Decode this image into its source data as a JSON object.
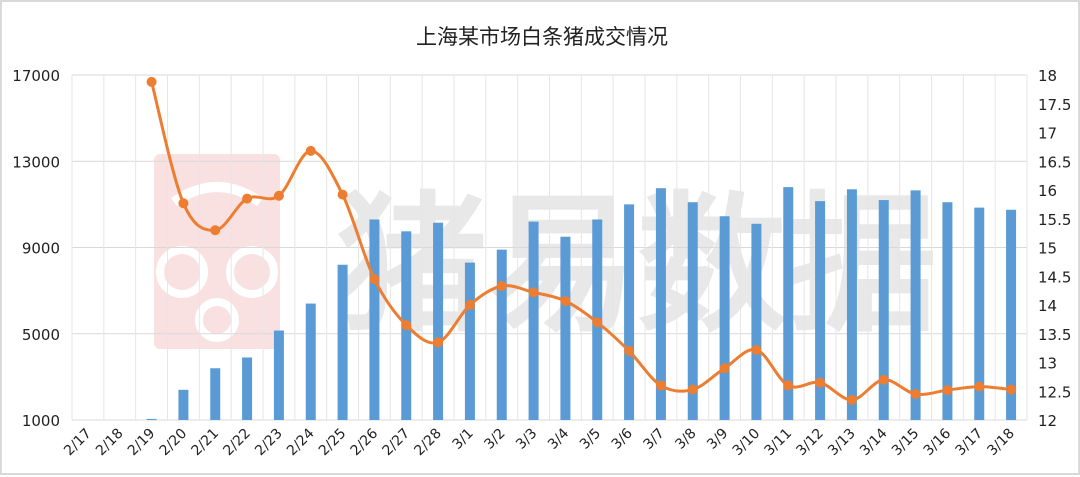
{
  "chart_data": {
    "type": "bar+line",
    "title": "上海某市场白条猪成交情况",
    "watermark": "猪易数据",
    "categories": [
      "2/17",
      "2/18",
      "2/19",
      "2/20",
      "2/21",
      "2/22",
      "2/23",
      "2/24",
      "2/25",
      "2/26",
      "2/27",
      "2/28",
      "3/1",
      "3/2",
      "3/3",
      "3/4",
      "3/5",
      "3/6",
      "3/7",
      "3/8",
      "3/9",
      "3/10",
      "3/11",
      "3/12",
      "3/13",
      "3/14",
      "3/15",
      "3/16",
      "3/17",
      "3/18"
    ],
    "left_axis": {
      "ylim": [
        1000,
        17000
      ],
      "ticks": [
        "1000",
        "5000",
        "9000",
        "13000",
        "17000"
      ]
    },
    "right_axis": {
      "ylim": [
        12,
        18
      ],
      "ticks": [
        "12",
        "12.5",
        "13",
        "13.5",
        "14",
        "14.5",
        "15",
        "15.5",
        "16",
        "16.5",
        "17",
        "17.5",
        "18"
      ]
    },
    "series": [
      {
        "type": "bar",
        "axis": "left",
        "color": "#5b9bd5",
        "values": [
          null,
          null,
          1050,
          2400,
          3400,
          3900,
          5150,
          6400,
          8200,
          10300,
          9750,
          10150,
          8300,
          8900,
          10200,
          9500,
          10300,
          11000,
          11750,
          11100,
          10450,
          10100,
          11800,
          11150,
          11700,
          11200,
          11650,
          11100,
          10850,
          10750
        ]
      },
      {
        "type": "line",
        "axis": "right",
        "color": "#ed7d31",
        "values": [
          null,
          null,
          17.88,
          15.77,
          15.3,
          15.85,
          15.9,
          16.68,
          15.92,
          14.45,
          13.65,
          13.35,
          14.0,
          14.33,
          14.22,
          14.07,
          13.7,
          13.2,
          12.6,
          12.53,
          12.9,
          13.22,
          12.6,
          12.65,
          12.35,
          12.7,
          12.45,
          12.52,
          12.58,
          12.53
        ]
      }
    ]
  }
}
